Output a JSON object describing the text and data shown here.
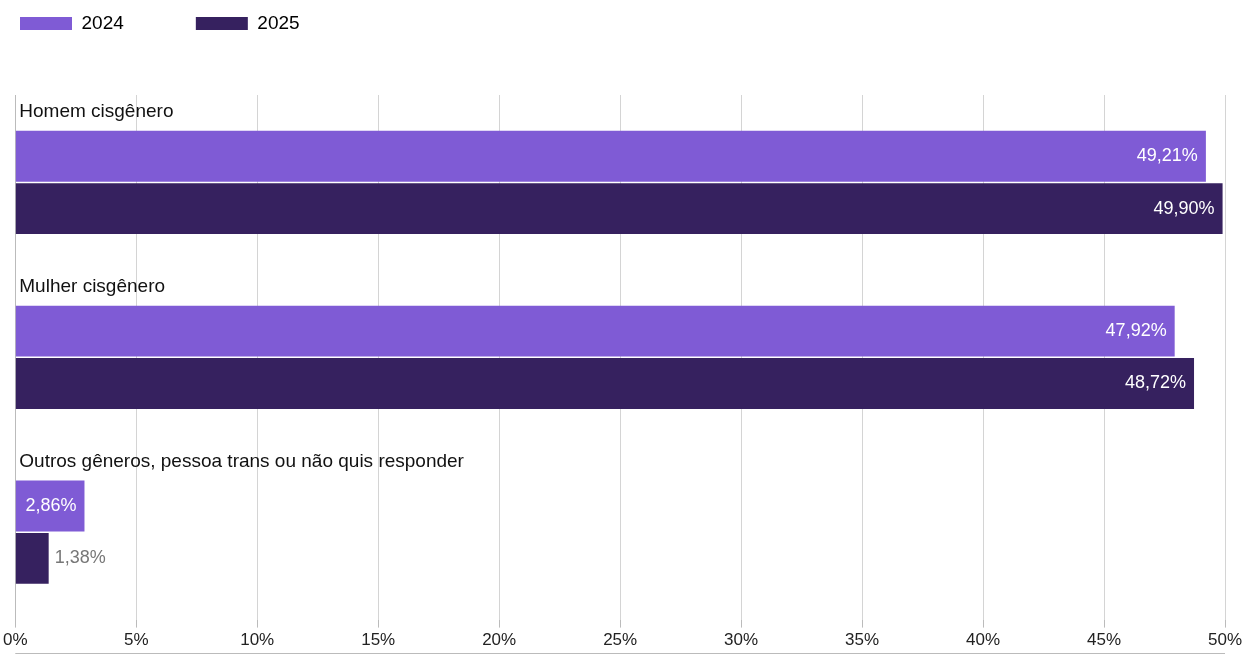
{
  "chart_data": {
    "type": "bar",
    "orientation": "horizontal",
    "categories": [
      "Homem cisgênero",
      "Mulher cisgênero",
      "Outros gêneros, pessoa trans ou não quis responder"
    ],
    "series": [
      {
        "name": "2024",
        "color": "#7f5bd5",
        "values": [
          49.21,
          47.92,
          2.86
        ],
        "value_labels": [
          "49,21%",
          "47,92%",
          "2,86%"
        ]
      },
      {
        "name": "2025",
        "color": "#36215f",
        "values": [
          49.9,
          48.72,
          1.38
        ],
        "value_labels": [
          "49,90%",
          "48,72%",
          "1,38%"
        ]
      }
    ],
    "xlim": [
      0,
      50
    ],
    "xticks": [
      {
        "value": 0,
        "label": "0%"
      },
      {
        "value": 5,
        "label": "5%"
      },
      {
        "value": 10,
        "label": "10%"
      },
      {
        "value": 15,
        "label": "15%"
      },
      {
        "value": 20,
        "label": "20%"
      },
      {
        "value": 25,
        "label": "25%"
      },
      {
        "value": 30,
        "label": "30%"
      },
      {
        "value": 35,
        "label": "35%"
      },
      {
        "value": 40,
        "label": "40%"
      },
      {
        "value": 45,
        "label": "45%"
      },
      {
        "value": 50,
        "label": "50%"
      }
    ],
    "grid": "x",
    "legend": "top left"
  }
}
